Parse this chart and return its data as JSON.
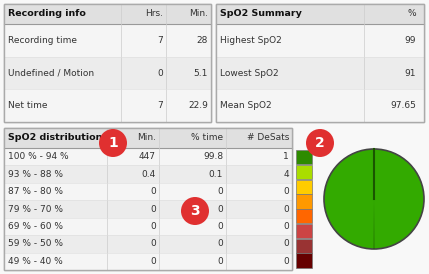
{
  "bg_color": "#f8f8f8",
  "rec_title": "Recording info",
  "rec_col1": "Hrs.",
  "rec_col2": "Min.",
  "rec_rows": [
    [
      "Recording time",
      "7",
      "28"
    ],
    [
      "Undefined / Motion",
      "0",
      "5.1"
    ],
    [
      "Net time",
      "7",
      "22.9"
    ]
  ],
  "spo2_title": "SpO2 Summary",
  "spo2_col": "%",
  "spo2_rows": [
    [
      "Highest SpO2",
      "99"
    ],
    [
      "Lowest SpO2",
      "91"
    ],
    [
      "Mean SpO2",
      "97.65"
    ]
  ],
  "dist_title": "SpO2 distribution",
  "dist_col1": "Min.",
  "dist_col2": "% time",
  "dist_col3": "# DeSats",
  "dist_rows": [
    [
      "100 % - 94 %",
      "447",
      "99.8",
      "1"
    ],
    [
      "93 % - 88 %",
      "0.4",
      "0.1",
      "4"
    ],
    [
      "87 % - 80 %",
      "0",
      "0",
      "0"
    ],
    [
      "79 % - 70 %",
      "0",
      "0",
      "0"
    ],
    [
      "69 % - 60 %",
      "0",
      "0",
      "0"
    ],
    [
      "59 % - 50 %",
      "0",
      "0",
      "0"
    ],
    [
      "49 % - 40 %",
      "0",
      "0",
      "0"
    ]
  ],
  "legend_colors": [
    "#2e8b00",
    "#aadd00",
    "#ffcc00",
    "#ff9900",
    "#ff6600",
    "#cc4444",
    "#993333",
    "#660000"
  ],
  "badge_color": "#e03030",
  "pie_color": "#33aa00",
  "pie_line_color": "#1a5500",
  "pie_border_color": "#444444",
  "pie_value": 99.8
}
